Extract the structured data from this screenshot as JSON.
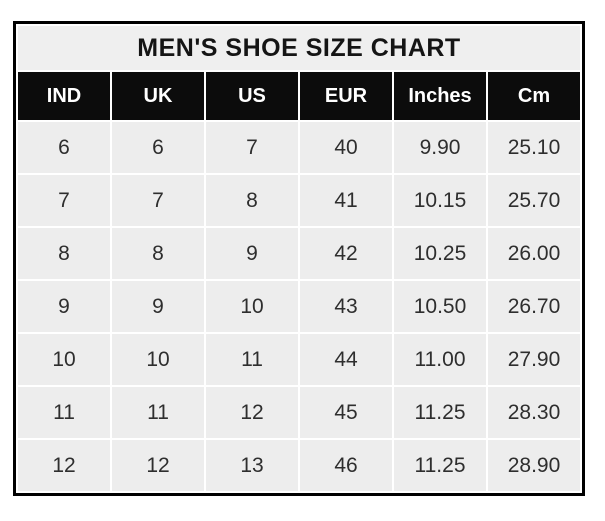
{
  "title": "MEN'S SHOE SIZE CHART",
  "table": {
    "headers": [
      "IND",
      "UK",
      "US",
      "EUR",
      "Inches",
      "Cm"
    ],
    "rows": [
      [
        "6",
        "6",
        "7",
        "40",
        "9.90",
        "25.10"
      ],
      [
        "7",
        "7",
        "8",
        "41",
        "10.15",
        "25.70"
      ],
      [
        "8",
        "8",
        "9",
        "42",
        "10.25",
        "26.00"
      ],
      [
        "9",
        "9",
        "10",
        "43",
        "10.50",
        "26.70"
      ],
      [
        "10",
        "10",
        "11",
        "44",
        "11.00",
        "27.90"
      ],
      [
        "11",
        "11",
        "12",
        "45",
        "11.25",
        "28.30"
      ],
      [
        "12",
        "12",
        "13",
        "46",
        "11.25",
        "28.90"
      ]
    ]
  },
  "colors": {
    "border": "#000000",
    "title_bg": "#efefef",
    "title_text": "#151515",
    "header_bg": "#0c0c0c",
    "header_text": "#ffffff",
    "cell_bg": "#ededed",
    "grid_line": "#ffffff",
    "body_text": "#2e2e2e"
  },
  "chart_data": {
    "type": "table",
    "title": "MEN'S SHOE SIZE CHART",
    "columns": [
      "IND",
      "UK",
      "US",
      "EUR",
      "Inches",
      "Cm"
    ],
    "rows": [
      [
        6,
        6,
        7,
        40,
        9.9,
        25.1
      ],
      [
        7,
        7,
        8,
        41,
        10.15,
        25.7
      ],
      [
        8,
        8,
        9,
        42,
        10.25,
        26.0
      ],
      [
        9,
        9,
        10,
        43,
        10.5,
        26.7
      ],
      [
        10,
        10,
        11,
        44,
        11.0,
        27.9
      ],
      [
        11,
        11,
        12,
        45,
        11.25,
        28.3
      ],
      [
        12,
        12,
        13,
        46,
        11.25,
        28.9
      ]
    ]
  }
}
